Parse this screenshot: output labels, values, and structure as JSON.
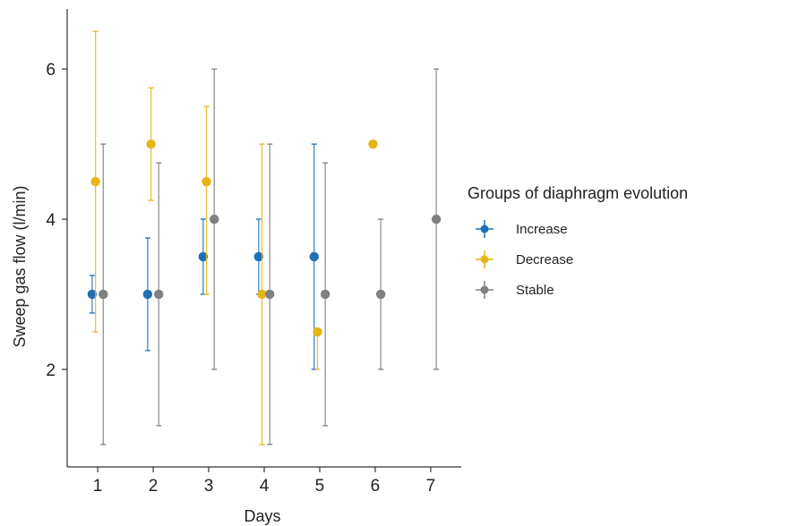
{
  "chart_data": {
    "type": "scatter",
    "subtype": "dodged point-range with error bars",
    "xlabel": "Days",
    "ylabel": "Sweep gas flow (l/min)",
    "x_ticks": [
      1,
      2,
      3,
      4,
      5,
      6,
      7
    ],
    "y_ticks": [
      2,
      4,
      6
    ],
    "xlim": [
      0.45,
      7.55
    ],
    "ylim": [
      0.7,
      6.8
    ],
    "grid": false,
    "legend": {
      "title": "Groups of diaphragm evolution",
      "placement": "right"
    },
    "series": [
      {
        "name": "Increase",
        "color": "#1f6fb5",
        "points": [
          {
            "x": 1,
            "y": 3.0,
            "low": 2.75,
            "high": 3.25
          },
          {
            "x": 2,
            "y": 3.0,
            "low": 2.25,
            "high": 3.75
          },
          {
            "x": 3,
            "y": 3.5,
            "low": 3.0,
            "high": 4.0
          },
          {
            "x": 4,
            "y": 3.5,
            "low": 3.0,
            "high": 4.0
          },
          {
            "x": 5,
            "y": 3.5,
            "low": 2.0,
            "high": 5.0
          }
        ]
      },
      {
        "name": "Decrease",
        "color": "#e7b416",
        "points": [
          {
            "x": 1,
            "y": 4.5,
            "low": 2.5,
            "high": 6.5
          },
          {
            "x": 2,
            "y": 5.0,
            "low": 4.25,
            "high": 5.75
          },
          {
            "x": 3,
            "y": 4.5,
            "low": 3.0,
            "high": 5.5
          },
          {
            "x": 4,
            "y": 3.0,
            "low": 1.0,
            "high": 5.0
          },
          {
            "x": 5,
            "y": 2.5,
            "low": 2.0,
            "high": 2.5
          },
          {
            "x": 6,
            "y": 5.0,
            "low": 5.0,
            "high": 5.0
          }
        ]
      },
      {
        "name": "Stable",
        "color": "#808080",
        "points": [
          {
            "x": 1,
            "y": 3.0,
            "low": 1.0,
            "high": 5.0
          },
          {
            "x": 2,
            "y": 3.0,
            "low": 1.25,
            "high": 4.75
          },
          {
            "x": 3,
            "y": 4.0,
            "low": 2.0,
            "high": 6.0
          },
          {
            "x": 4,
            "y": 3.0,
            "low": 1.0,
            "high": 5.0
          },
          {
            "x": 5,
            "y": 3.0,
            "low": 1.25,
            "high": 4.75
          },
          {
            "x": 6,
            "y": 3.0,
            "low": 2.0,
            "high": 4.0
          },
          {
            "x": 7,
            "y": 4.0,
            "low": 2.0,
            "high": 6.0
          }
        ]
      }
    ]
  }
}
